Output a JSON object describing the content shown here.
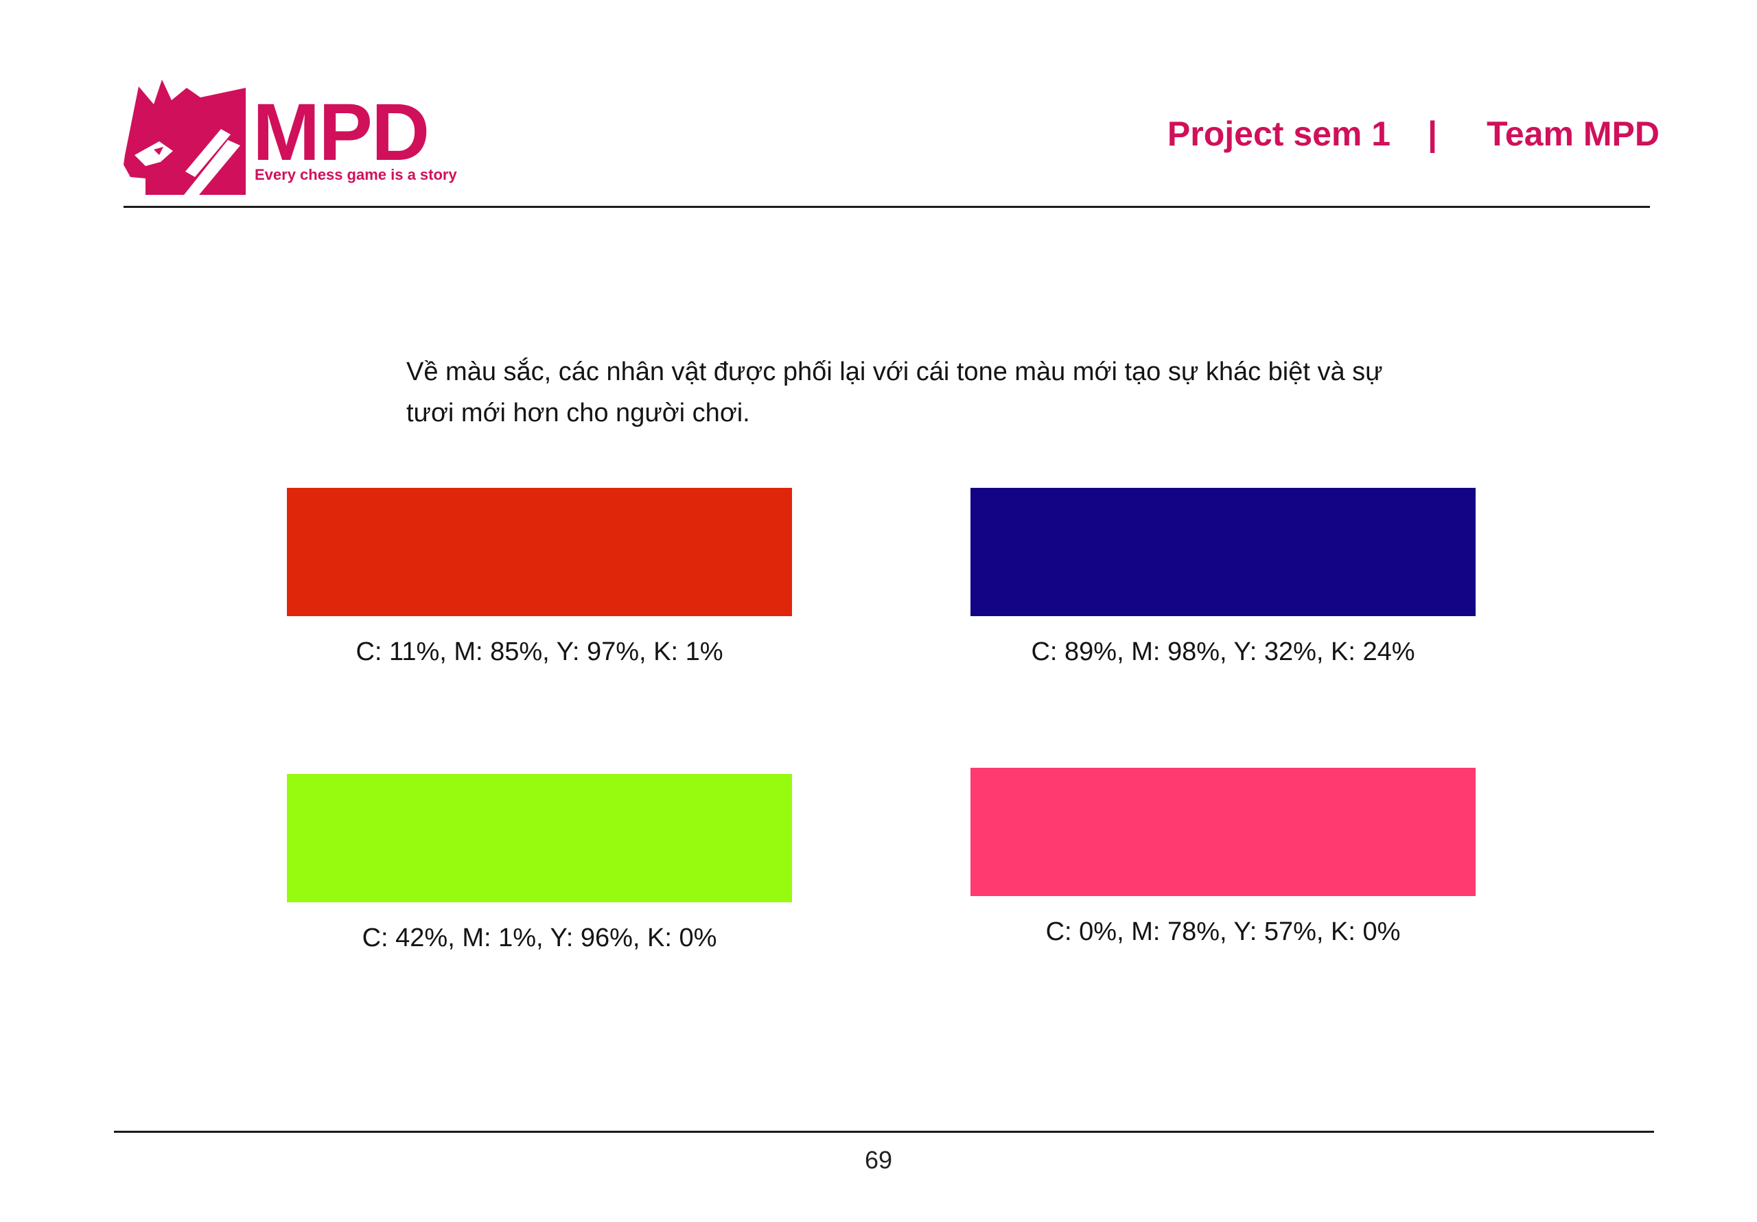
{
  "logo": {
    "wordmark": "MPD",
    "tagline": "Every chess game is a story",
    "brand_color": "#d0105a"
  },
  "header": {
    "project": "Project sem 1",
    "separator": "|",
    "team": "Team MPD"
  },
  "body": {
    "paragraph": "Về màu sắc, các nhân vật được phối lại với cái tone màu mới tạo sự khác biệt và sự tươi mới hơn cho người chơi."
  },
  "swatches": [
    {
      "color": "#e0260a",
      "label": "C: 11%, M: 85%, Y: 97%, K: 1%"
    },
    {
      "color": "#130385",
      "label": "C: 89%, M: 98%, Y: 32%, K: 24%"
    },
    {
      "color": "#97fb0f",
      "label": "C: 42%, M: 1%, Y: 96%, K: 0%"
    },
    {
      "color": "#ff3a70",
      "label": "C: 0%, M: 78%, Y: 57%, K: 0%"
    }
  ],
  "footer": {
    "page_number": "69"
  }
}
